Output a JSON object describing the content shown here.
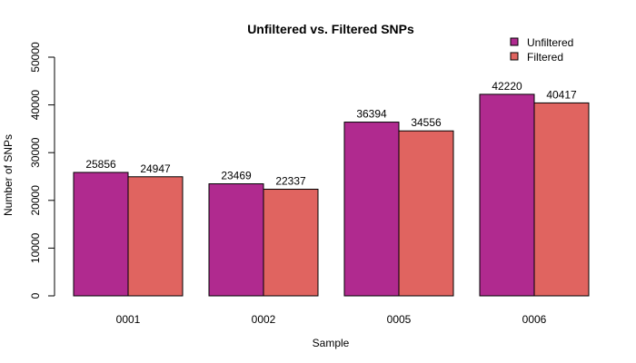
{
  "chart_data": {
    "type": "bar",
    "title": "Unfiltered vs. Filtered SNPs",
    "xlabel": "Sample",
    "ylabel": "Number of SNPs",
    "categories": [
      "0001",
      "0002",
      "0005",
      "0006"
    ],
    "series": [
      {
        "name": "Unfiltered",
        "values": [
          25856,
          23469,
          36394,
          42220
        ],
        "color": "#B02A8F"
      },
      {
        "name": "Filtered",
        "values": [
          24947,
          22337,
          34556,
          40417
        ],
        "color": "#E06460"
      }
    ],
    "ylim": [
      0,
      50000
    ],
    "yticks": [
      "0",
      "10000",
      "20000",
      "30000",
      "40000",
      "50000"
    ],
    "grid": false,
    "legend_position": "top-right"
  }
}
